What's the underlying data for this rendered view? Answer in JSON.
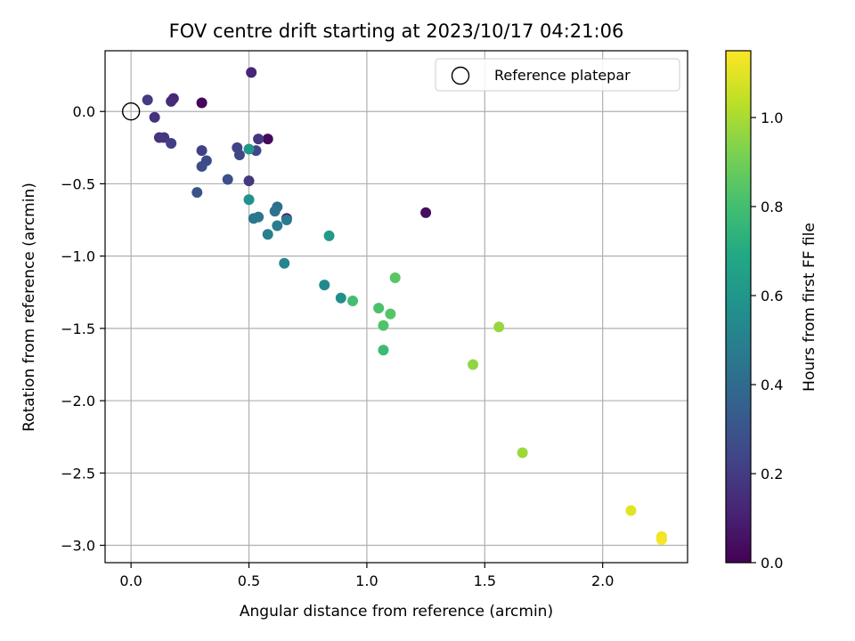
{
  "chart_data": {
    "type": "scatter",
    "title": "FOV centre drift starting at 2023/10/17 04:21:06",
    "xlabel": "Angular distance from reference (arcmin)",
    "ylabel": "Rotation from reference (arcmin)",
    "xlim": [
      -0.11,
      2.36
    ],
    "ylim": [
      -3.12,
      0.42
    ],
    "xticks": [
      0.0,
      0.5,
      1.0,
      1.5,
      2.0
    ],
    "xtick_labels": [
      "0.0",
      "0.5",
      "1.0",
      "1.5",
      "2.0"
    ],
    "yticks": [
      0.0,
      -0.5,
      -1.0,
      -1.5,
      -2.0,
      -2.5,
      -3.0
    ],
    "ytick_labels": [
      "0.0",
      "−0.5",
      "−1.0",
      "−1.5",
      "−2.0",
      "−2.5",
      "−3.0"
    ],
    "grid": true,
    "legend": {
      "position": "top-right",
      "entries": [
        "Reference platepar"
      ]
    },
    "reference_point": {
      "x": 0.0,
      "y": 0.0,
      "label": "Reference platepar"
    },
    "colorbar": {
      "label": "Hours from first FF file",
      "colormap": "viridis",
      "range": [
        0.0,
        1.15
      ],
      "ticks": [
        0.0,
        0.2,
        0.4,
        0.6,
        0.8,
        1.0
      ],
      "tick_labels": [
        "0.0",
        "0.2",
        "0.4",
        "0.6",
        "0.8",
        "1.0"
      ]
    },
    "points": [
      {
        "x": 0.3,
        "y": 0.06,
        "c": 0.02
      },
      {
        "x": 0.58,
        "y": -0.19,
        "c": 0.03
      },
      {
        "x": 1.25,
        "y": -0.7,
        "c": 0.04
      },
      {
        "x": 0.66,
        "y": -0.74,
        "c": 0.06
      },
      {
        "x": 0.51,
        "y": 0.27,
        "c": 0.12
      },
      {
        "x": 0.18,
        "y": 0.09,
        "c": 0.13
      },
      {
        "x": 0.17,
        "y": 0.07,
        "c": 0.14
      },
      {
        "x": 0.1,
        "y": -0.04,
        "c": 0.16
      },
      {
        "x": 0.12,
        "y": -0.18,
        "c": 0.17
      },
      {
        "x": 0.14,
        "y": -0.18,
        "c": 0.18
      },
      {
        "x": 0.54,
        "y": -0.19,
        "c": 0.18
      },
      {
        "x": 0.5,
        "y": -0.48,
        "c": 0.19
      },
      {
        "x": 0.07,
        "y": 0.08,
        "c": 0.2
      },
      {
        "x": 0.17,
        "y": -0.22,
        "c": 0.21
      },
      {
        "x": 0.3,
        "y": -0.27,
        "c": 0.22
      },
      {
        "x": 0.45,
        "y": -0.25,
        "c": 0.23
      },
      {
        "x": 0.53,
        "y": -0.27,
        "c": 0.24
      },
      {
        "x": 0.46,
        "y": -0.3,
        "c": 0.25
      },
      {
        "x": 0.32,
        "y": -0.34,
        "c": 0.26
      },
      {
        "x": 0.3,
        "y": -0.38,
        "c": 0.27
      },
      {
        "x": 0.41,
        "y": -0.47,
        "c": 0.28
      },
      {
        "x": 0.28,
        "y": -0.56,
        "c": 0.29
      },
      {
        "x": 0.62,
        "y": -0.66,
        "c": 0.42
      },
      {
        "x": 0.61,
        "y": -0.69,
        "c": 0.44
      },
      {
        "x": 0.54,
        "y": -0.73,
        "c": 0.45
      },
      {
        "x": 0.52,
        "y": -0.74,
        "c": 0.46
      },
      {
        "x": 0.66,
        "y": -0.75,
        "c": 0.47
      },
      {
        "x": 0.62,
        "y": -0.79,
        "c": 0.48
      },
      {
        "x": 0.58,
        "y": -0.85,
        "c": 0.49
      },
      {
        "x": 0.65,
        "y": -1.05,
        "c": 0.52
      },
      {
        "x": 0.82,
        "y": -1.2,
        "c": 0.54
      },
      {
        "x": 0.89,
        "y": -1.29,
        "c": 0.57
      },
      {
        "x": 0.5,
        "y": -0.61,
        "c": 0.58
      },
      {
        "x": 0.5,
        "y": -0.26,
        "c": 0.6
      },
      {
        "x": 0.84,
        "y": -0.86,
        "c": 0.62
      },
      {
        "x": 1.07,
        "y": -1.65,
        "c": 0.78
      },
      {
        "x": 0.94,
        "y": -1.31,
        "c": 0.8
      },
      {
        "x": 1.05,
        "y": -1.36,
        "c": 0.82
      },
      {
        "x": 1.07,
        "y": -1.48,
        "c": 0.83
      },
      {
        "x": 1.1,
        "y": -1.4,
        "c": 0.84
      },
      {
        "x": 1.12,
        "y": -1.15,
        "c": 0.85
      },
      {
        "x": 1.45,
        "y": -1.75,
        "c": 0.96
      },
      {
        "x": 1.56,
        "y": -1.49,
        "c": 0.97
      },
      {
        "x": 1.66,
        "y": -2.36,
        "c": 0.98
      },
      {
        "x": 2.12,
        "y": -2.76,
        "c": 1.1
      },
      {
        "x": 2.25,
        "y": -2.94,
        "c": 1.12
      },
      {
        "x": 2.25,
        "y": -2.96,
        "c": 1.13
      }
    ]
  }
}
